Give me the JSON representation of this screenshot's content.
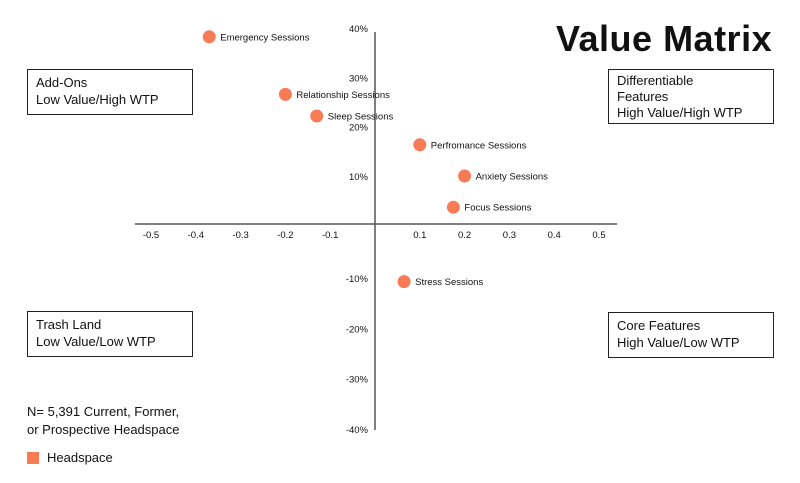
{
  "chart_data": {
    "type": "scatter",
    "title": "Value Matrix",
    "xlabel": "",
    "ylabel": "",
    "xlim": [
      -0.5,
      0.5
    ],
    "ylim": [
      -0.4,
      0.4
    ],
    "x_ticks": [
      -0.5,
      -0.4,
      -0.3,
      -0.2,
      -0.1,
      0.1,
      0.2,
      0.3,
      0.4,
      0.5
    ],
    "x_tick_labels": [
      "-0.5",
      "-0.4",
      "-0.3",
      "-0.2",
      "-0.1",
      "0.1",
      "0.2",
      "0.3",
      "0.4",
      "0.5"
    ],
    "y_ticks": [
      0.4,
      0.3,
      0.2,
      0.1,
      -0.1,
      -0.2,
      -0.3,
      -0.4
    ],
    "y_tick_labels": [
      "40%",
      "30%",
      "20%",
      "10%",
      "-10%",
      "-20%",
      "-30%",
      "-40%"
    ],
    "grid": false,
    "legend": {
      "placement": "bottom-left",
      "entries": [
        {
          "name": "Headspace",
          "color": "#F77B55"
        }
      ]
    },
    "series": [
      {
        "name": "Headspace",
        "color": "#F77B55",
        "points": [
          {
            "label": "Emergency Sessions",
            "x": -0.37,
            "y": 0.39
          },
          {
            "label": "Relationship Sessions",
            "x": -0.2,
            "y": 0.27
          },
          {
            "label": "Sleep Sessions",
            "x": -0.13,
            "y": 0.225
          },
          {
            "label": "Perfromance Sessions",
            "x": 0.1,
            "y": 0.165
          },
          {
            "label": "Anxiety Sessions",
            "x": 0.2,
            "y": 0.1
          },
          {
            "label": "Focus Sessions",
            "x": 0.175,
            "y": 0.035
          },
          {
            "label": "Stress Sessions",
            "x": 0.065,
            "y": -0.12
          }
        ]
      }
    ]
  },
  "quadrants": {
    "top_left": [
      "Add-Ons",
      "Low Value/High WTP"
    ],
    "top_right": [
      "Differentiable",
      "Features",
      "High Value/High WTP"
    ],
    "bottom_left": [
      "Trash Land",
      "Low Value/Low WTP"
    ],
    "bottom_right": [
      "Core Features",
      "High Value/Low WTP"
    ]
  },
  "note": [
    "N= 5,391 Current, Former,",
    "or Prospective Headspace"
  ]
}
